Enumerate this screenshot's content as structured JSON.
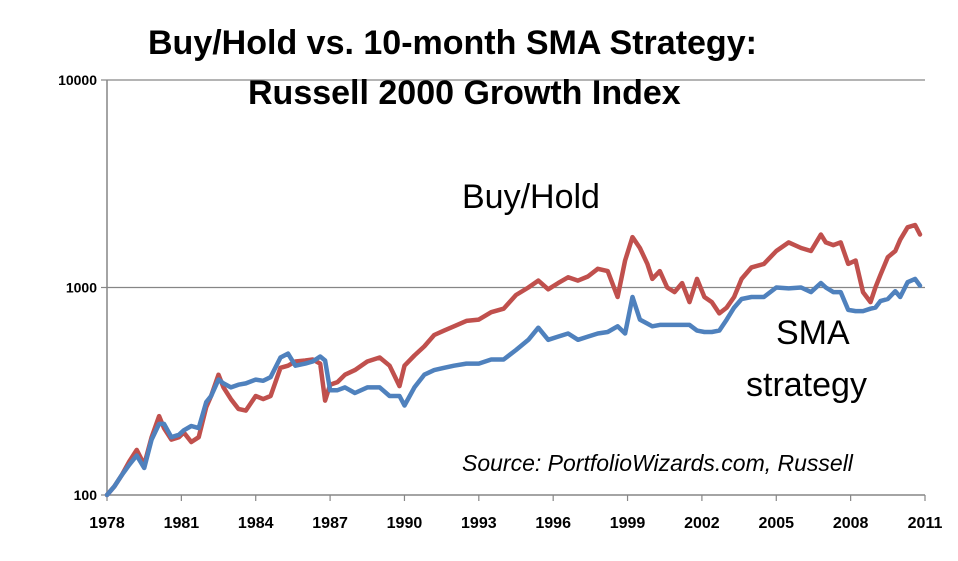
{
  "chart_data": {
    "type": "line",
    "title_line1": "Buy/Hold vs. 10-month SMA Strategy:",
    "title_line2": "Russell 2000 Growth Index",
    "y_scale": "log",
    "ylim": [
      100,
      10000
    ],
    "y_ticks": [
      100,
      1000,
      10000
    ],
    "y_tick_labels": [
      "100",
      "1000",
      "10000"
    ],
    "xlim": [
      1978,
      2011
    ],
    "x_ticks": [
      1978,
      1981,
      1984,
      1987,
      1990,
      1993,
      1996,
      1999,
      2002,
      2005,
      2008,
      2011
    ],
    "x_tick_labels": [
      "1978",
      "1981",
      "1984",
      "1987",
      "1990",
      "1993",
      "1996",
      "1999",
      "2002",
      "2005",
      "2008",
      "2011"
    ],
    "grid": "horizontal",
    "annotations": {
      "buy_hold": "Buy/Hold",
      "sma_line1": "SMA",
      "sma_line2": "strategy",
      "source": "Source: PortfolioWizards.com, Russell"
    },
    "series": [
      {
        "name": "Buy/Hold",
        "color": "#c0504d",
        "x": [
          1978.0,
          1978.3,
          1978.6,
          1978.9,
          1979.2,
          1979.5,
          1979.8,
          1980.1,
          1980.3,
          1980.6,
          1980.9,
          1981.1,
          1981.4,
          1981.7,
          1982.0,
          1982.2,
          1982.5,
          1982.7,
          1983.0,
          1983.3,
          1983.6,
          1984.0,
          1984.3,
          1984.6,
          1985.0,
          1985.3,
          1985.6,
          1986.0,
          1986.3,
          1986.6,
          1986.8,
          1987.0,
          1987.3,
          1987.6,
          1988.0,
          1988.5,
          1989.0,
          1989.4,
          1989.8,
          1990.0,
          1990.4,
          1990.8,
          1991.2,
          1991.6,
          1992.0,
          1992.5,
          1993.0,
          1993.5,
          1994.0,
          1994.5,
          1995.0,
          1995.4,
          1995.8,
          1996.2,
          1996.6,
          1997.0,
          1997.4,
          1997.8,
          1998.2,
          1998.6,
          1998.9,
          1999.2,
          1999.5,
          1999.8,
          2000.0,
          2000.3,
          2000.6,
          2000.9,
          2001.2,
          2001.5,
          2001.8,
          2002.1,
          2002.4,
          2002.7,
          2003.0,
          2003.3,
          2003.6,
          2004.0,
          2004.5,
          2005.0,
          2005.5,
          2006.0,
          2006.4,
          2006.8,
          2007.0,
          2007.3,
          2007.6,
          2007.9,
          2008.2,
          2008.5,
          2008.8,
          2009.0,
          2009.2,
          2009.5,
          2009.8,
          2010.0,
          2010.3,
          2010.6,
          2010.8
        ],
        "values": [
          100,
          110,
          125,
          145,
          165,
          140,
          190,
          240,
          210,
          185,
          190,
          200,
          180,
          190,
          265,
          300,
          380,
          330,
          290,
          260,
          255,
          300,
          290,
          300,
          410,
          420,
          440,
          445,
          450,
          430,
          285,
          340,
          350,
          380,
          400,
          440,
          460,
          420,
          335,
          420,
          470,
          520,
          590,
          620,
          650,
          690,
          700,
          760,
          790,
          920,
          1000,
          1080,
          980,
          1050,
          1120,
          1080,
          1130,
          1230,
          1200,
          900,
          1350,
          1750,
          1550,
          1300,
          1100,
          1200,
          1000,
          950,
          1050,
          850,
          1100,
          900,
          850,
          750,
          800,
          900,
          1100,
          1250,
          1300,
          1500,
          1650,
          1550,
          1500,
          1800,
          1650,
          1600,
          1650,
          1300,
          1350,
          950,
          850,
          1000,
          1150,
          1400,
          1500,
          1700,
          1950,
          2000,
          1800
        ]
      },
      {
        "name": "SMA strategy",
        "color": "#4f81bd",
        "x": [
          1978.0,
          1978.3,
          1978.6,
          1978.9,
          1979.2,
          1979.5,
          1979.8,
          1980.1,
          1980.3,
          1980.6,
          1980.9,
          1981.1,
          1981.4,
          1981.7,
          1982.0,
          1982.2,
          1982.5,
          1982.7,
          1983.0,
          1983.3,
          1983.6,
          1984.0,
          1984.3,
          1984.6,
          1985.0,
          1985.3,
          1985.6,
          1986.0,
          1986.3,
          1986.6,
          1986.8,
          1987.0,
          1987.3,
          1987.6,
          1988.0,
          1988.5,
          1989.0,
          1989.4,
          1989.8,
          1990.0,
          1990.4,
          1990.8,
          1991.2,
          1991.6,
          1992.0,
          1992.5,
          1993.0,
          1993.5,
          1994.0,
          1994.5,
          1995.0,
          1995.4,
          1995.8,
          1996.2,
          1996.6,
          1997.0,
          1997.4,
          1997.8,
          1998.2,
          1998.6,
          1998.9,
          1999.2,
          1999.5,
          1999.8,
          2000.0,
          2000.3,
          2000.6,
          2000.9,
          2001.2,
          2001.5,
          2001.8,
          2002.1,
          2002.4,
          2002.7,
          2003.0,
          2003.3,
          2003.6,
          2004.0,
          2004.5,
          2005.0,
          2005.5,
          2006.0,
          2006.4,
          2006.8,
          2007.0,
          2007.3,
          2007.6,
          2007.9,
          2008.2,
          2008.5,
          2008.8,
          2009.0,
          2009.2,
          2009.5,
          2009.8,
          2010.0,
          2010.3,
          2010.6,
          2010.8
        ],
        "values": [
          100,
          110,
          125,
          140,
          155,
          135,
          185,
          220,
          220,
          190,
          195,
          205,
          215,
          210,
          280,
          300,
          360,
          345,
          330,
          340,
          345,
          360,
          355,
          370,
          460,
          480,
          420,
          430,
          440,
          465,
          445,
          320,
          320,
          330,
          310,
          330,
          330,
          300,
          300,
          270,
          330,
          380,
          400,
          410,
          420,
          430,
          430,
          450,
          450,
          500,
          560,
          640,
          560,
          580,
          600,
          560,
          580,
          600,
          610,
          650,
          600,
          900,
          700,
          670,
          650,
          660,
          660,
          660,
          660,
          660,
          620,
          610,
          610,
          620,
          700,
          800,
          880,
          900,
          900,
          1000,
          990,
          1000,
          950,
          1050,
          1000,
          950,
          950,
          780,
          770,
          770,
          790,
          800,
          860,
          880,
          960,
          900,
          1060,
          1100,
          1020
        ]
      }
    ]
  }
}
